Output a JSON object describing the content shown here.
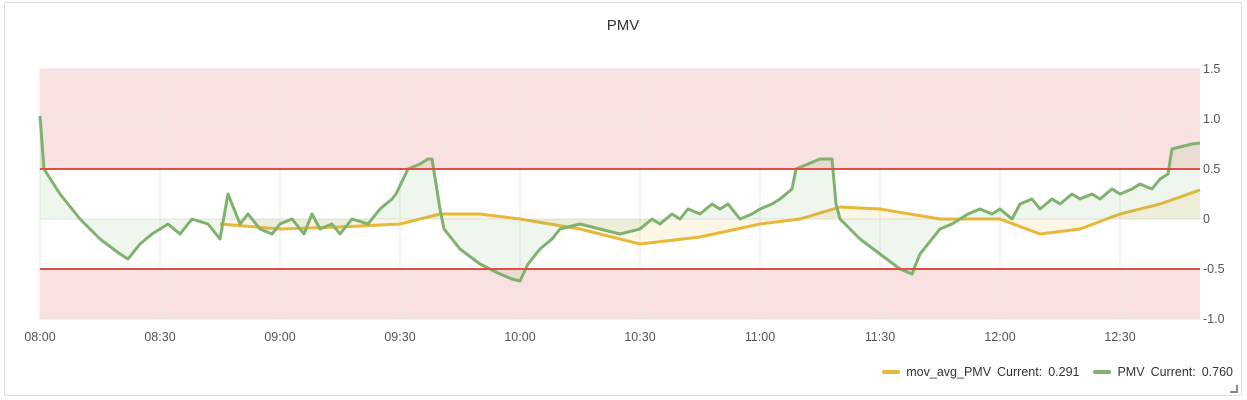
{
  "panel": {
    "title": "PMV"
  },
  "colors": {
    "pmv": "#7eb26d",
    "mov_avg": "#eab839",
    "threshold_line": "#e24d42",
    "band_fill": "#f9e1e1",
    "grid": "#e6e6e6"
  },
  "legend": {
    "items": [
      {
        "name": "mov_avg_PMV",
        "current_label": "Current:",
        "current_value": "0.291",
        "color": "#eab839"
      },
      {
        "name": "PMV",
        "current_label": "Current:",
        "current_value": "0.760",
        "color": "#7eb26d"
      }
    ]
  },
  "chart_data": {
    "type": "line",
    "title": "PMV",
    "x_ticks": [
      "08:00",
      "08:30",
      "09:00",
      "09:30",
      "10:00",
      "10:30",
      "11:00",
      "11:30",
      "12:00",
      "12:30"
    ],
    "x_range": [
      "08:00",
      "12:50"
    ],
    "y_ticks": [
      "1.5",
      "1.0",
      "0.5",
      "0",
      "-0.5",
      "-1.0"
    ],
    "ylim": [
      -1.0,
      1.5
    ],
    "thresholds": [
      0.5,
      -0.5
    ],
    "y_axis_side": "right",
    "grid": true,
    "legend_position": "bottom-right",
    "series": [
      {
        "name": "PMV",
        "x": [
          "08:00",
          "08:01",
          "08:05",
          "08:10",
          "08:15",
          "08:20",
          "08:22",
          "08:25",
          "08:28",
          "08:32",
          "08:35",
          "08:38",
          "08:42",
          "08:45",
          "08:47",
          "08:50",
          "08:52",
          "08:55",
          "08:58",
          "09:00",
          "09:03",
          "09:06",
          "09:08",
          "09:10",
          "09:13",
          "09:15",
          "09:18",
          "09:22",
          "09:25",
          "09:28",
          "09:29",
          "09:32",
          "09:35",
          "09:37",
          "09:38",
          "09:40",
          "09:41",
          "09:45",
          "09:50",
          "09:55",
          "09:58",
          "10:00",
          "10:02",
          "10:05",
          "10:08",
          "10:10",
          "10:15",
          "10:20",
          "10:25",
          "10:30",
          "10:33",
          "10:35",
          "10:38",
          "10:40",
          "10:42",
          "10:45",
          "10:48",
          "10:50",
          "10:52",
          "10:55",
          "10:58",
          "11:00",
          "11:03",
          "11:05",
          "11:08",
          "11:09",
          "11:12",
          "11:15",
          "11:18",
          "11:19",
          "11:20",
          "11:25",
          "11:30",
          "11:35",
          "11:38",
          "11:40",
          "11:43",
          "11:45",
          "11:48",
          "11:50",
          "11:52",
          "11:55",
          "11:58",
          "12:00",
          "12:03",
          "12:05",
          "12:08",
          "12:10",
          "12:13",
          "12:15",
          "12:18",
          "12:20",
          "12:23",
          "12:25",
          "12:28",
          "12:30",
          "12:33",
          "12:35",
          "12:38",
          "12:40",
          "12:42",
          "12:43",
          "12:45",
          "12:48",
          "12:50"
        ],
        "values": [
          1.03,
          0.5,
          0.25,
          0.0,
          -0.2,
          -0.35,
          -0.4,
          -0.25,
          -0.15,
          -0.05,
          -0.15,
          0.0,
          -0.05,
          -0.2,
          0.25,
          -0.05,
          0.05,
          -0.1,
          -0.15,
          -0.05,
          0.0,
          -0.15,
          0.05,
          -0.1,
          -0.05,
          -0.15,
          0.0,
          -0.05,
          0.1,
          0.2,
          0.25,
          0.5,
          0.55,
          0.6,
          0.6,
          0.1,
          -0.1,
          -0.3,
          -0.45,
          -0.55,
          -0.6,
          -0.62,
          -0.45,
          -0.3,
          -0.2,
          -0.1,
          -0.05,
          -0.1,
          -0.15,
          -0.1,
          0.0,
          -0.05,
          0.05,
          0.0,
          0.1,
          0.05,
          0.15,
          0.1,
          0.15,
          0.0,
          0.05,
          0.1,
          0.15,
          0.2,
          0.3,
          0.5,
          0.55,
          0.6,
          0.6,
          0.15,
          0.0,
          -0.2,
          -0.35,
          -0.5,
          -0.55,
          -0.35,
          -0.2,
          -0.1,
          -0.05,
          0.0,
          0.05,
          0.1,
          0.05,
          0.1,
          0.0,
          0.15,
          0.2,
          0.1,
          0.2,
          0.15,
          0.25,
          0.2,
          0.25,
          0.2,
          0.3,
          0.25,
          0.3,
          0.35,
          0.3,
          0.4,
          0.45,
          0.7,
          0.72,
          0.75,
          0.76
        ]
      },
      {
        "name": "mov_avg_PMV",
        "x": [
          "08:45",
          "09:00",
          "09:15",
          "09:30",
          "09:40",
          "09:50",
          "10:00",
          "10:15",
          "10:30",
          "10:45",
          "11:00",
          "11:10",
          "11:20",
          "11:30",
          "11:45",
          "12:00",
          "12:10",
          "12:20",
          "12:30",
          "12:40",
          "12:50"
        ],
        "values": [
          -0.05,
          -0.1,
          -0.08,
          -0.05,
          0.05,
          0.05,
          0.0,
          -0.1,
          -0.25,
          -0.18,
          -0.05,
          0.0,
          0.12,
          0.1,
          0.0,
          0.0,
          -0.15,
          -0.1,
          0.05,
          0.15,
          0.291
        ]
      }
    ]
  }
}
